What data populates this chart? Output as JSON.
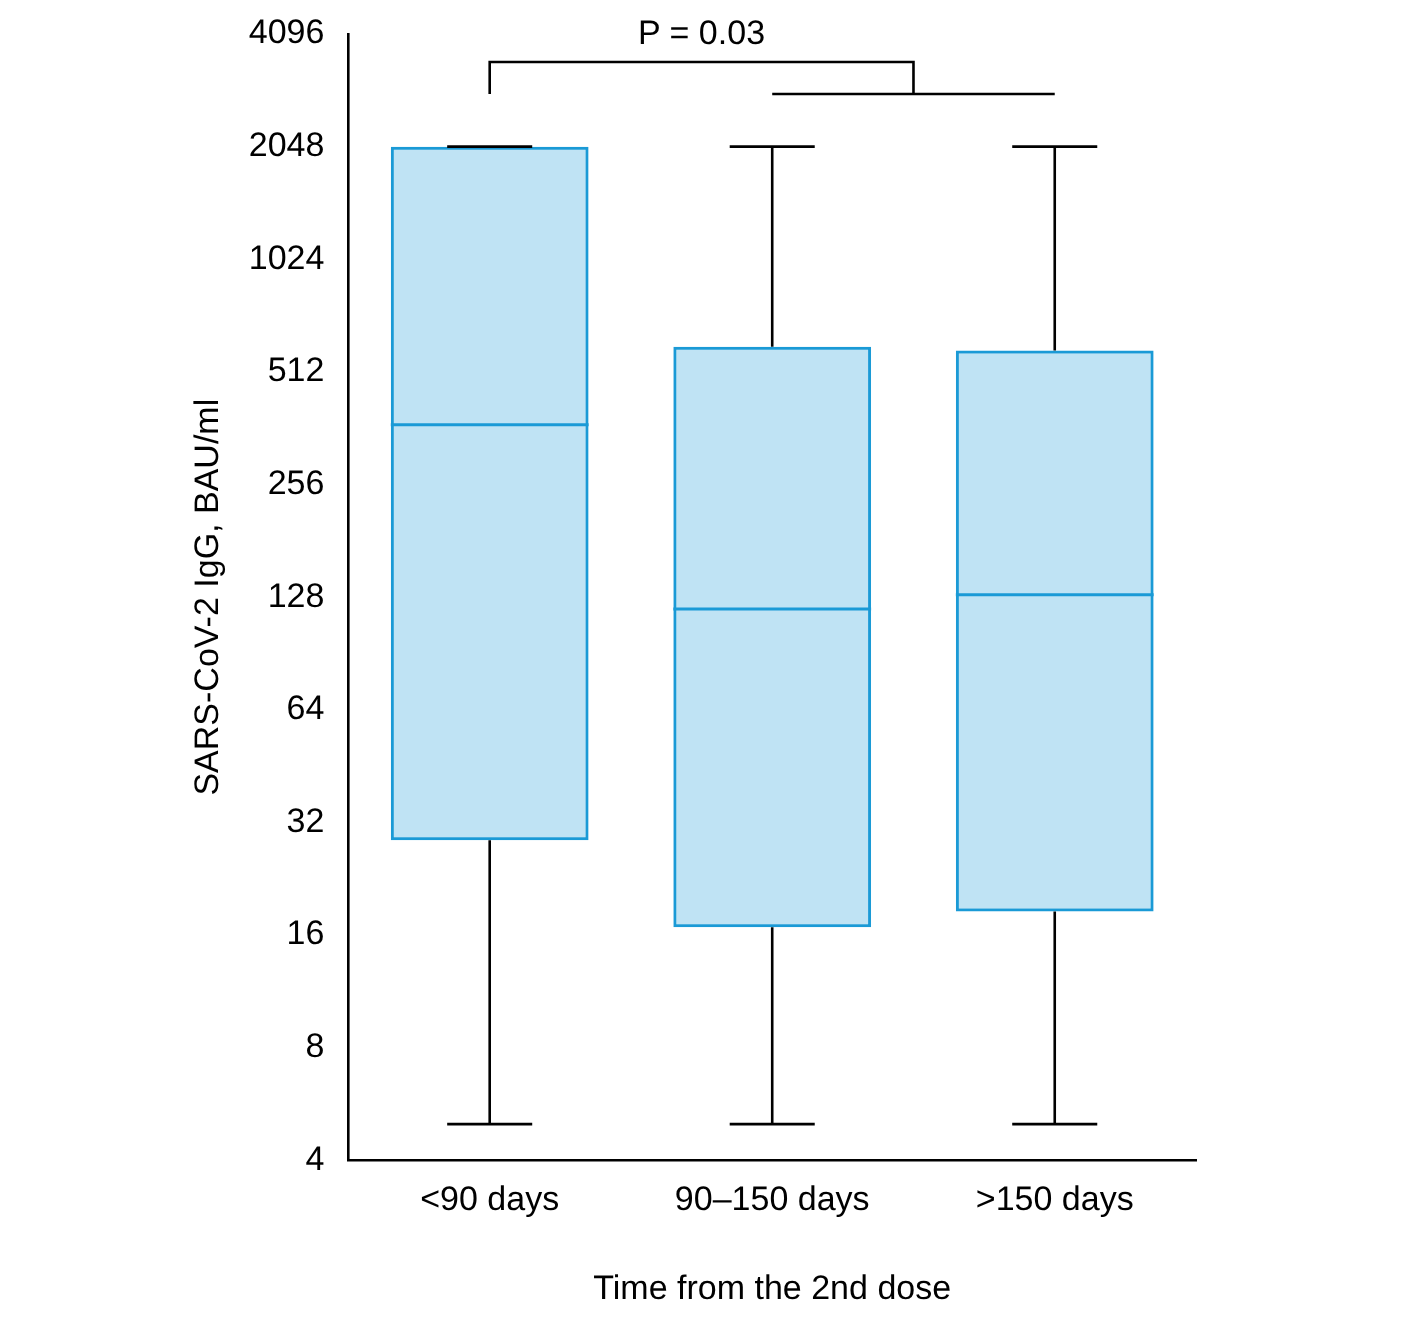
{
  "chart_data": {
    "type": "box",
    "xlabel": "Time from the 2nd dose",
    "ylabel": "SARS-CoV-2 IgG, BAU/ml",
    "categories": [
      "<90 days",
      "90–150 days",
      ">150 days"
    ],
    "boxes": [
      {
        "low": 5,
        "q1": 28.7,
        "median": 370,
        "q3": 2048,
        "high": 2048
      },
      {
        "low": 5,
        "q1": 16.8,
        "median": 119,
        "q3": 598,
        "high": 2048
      },
      {
        "low": 5,
        "q1": 18.5,
        "median": 130,
        "q3": 584,
        "high": 2048
      }
    ],
    "color": "#1a9ad6",
    "log": true,
    "ylim": [
      4,
      4096
    ],
    "yticks": [
      4,
      8,
      16,
      32,
      64,
      128,
      256,
      512,
      1024,
      2048,
      4096
    ],
    "grid": false,
    "legend": false,
    "annotations": [
      "P = 0.03"
    ]
  }
}
